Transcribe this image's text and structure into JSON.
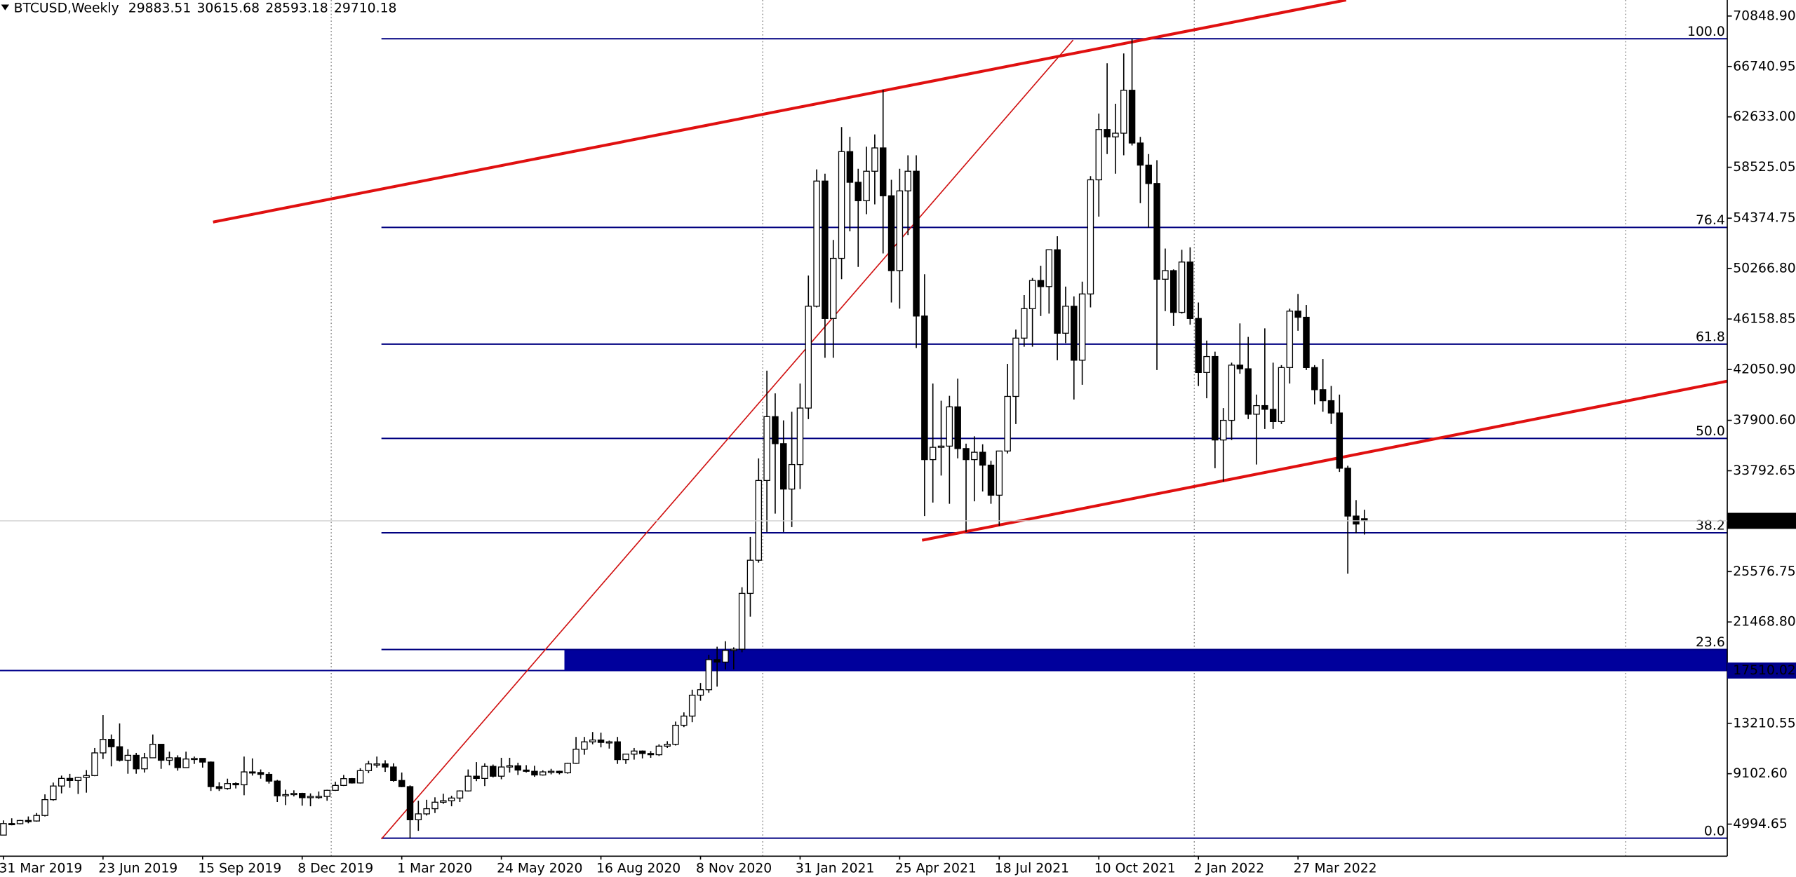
{
  "chart_data": {
    "type": "candlestick",
    "symbol": "BTCUSD,Weekly",
    "ylim": [
      2383,
      72155
    ],
    "yticks": [
      {
        "value": 70848.9,
        "label": "70848.90"
      },
      66740.95,
      {
        "value": 62633,
        "label": "62633.00"
      },
      58525.05,
      54374.75,
      {
        "value": 50266.8,
        "label": "50266.80"
      },
      46158.85,
      {
        "value": 42050.9,
        "label": "42050.90"
      },
      {
        "value": 37900.6,
        "label": "37900.60"
      },
      33792.65,
      25576.75,
      {
        "value": 21468.8,
        "label": "21468.80"
      },
      13210.55,
      {
        "value": 9102.6,
        "label": "9102.60"
      },
      4994.65
    ],
    "categories": [
      "31 Mar 2019",
      null,
      null,
      null,
      null,
      null,
      null,
      null,
      null,
      null,
      null,
      null,
      "23 Jun 2019",
      null,
      null,
      null,
      null,
      null,
      null,
      null,
      null,
      null,
      null,
      null,
      "15 Sep 2019",
      null,
      null,
      null,
      null,
      null,
      null,
      null,
      null,
      null,
      null,
      null,
      "8 Dec 2019",
      null,
      null,
      null,
      null,
      null,
      null,
      null,
      null,
      null,
      null,
      null,
      "1 Mar 2020",
      null,
      null,
      null,
      null,
      null,
      null,
      null,
      null,
      null,
      null,
      null,
      "24 May 2020",
      null,
      null,
      null,
      null,
      null,
      null,
      null,
      null,
      null,
      null,
      null,
      "16 Aug 2020",
      null,
      null,
      null,
      null,
      null,
      null,
      null,
      null,
      null,
      null,
      null,
      "8 Nov 2020",
      null,
      null,
      null,
      null,
      null,
      null,
      null,
      null,
      null,
      null,
      null,
      "31 Jan 2021",
      null,
      null,
      null,
      null,
      null,
      null,
      null,
      null,
      null,
      null,
      null,
      "25 Apr 2021",
      null,
      null,
      null,
      null,
      null,
      null,
      null,
      null,
      null,
      null,
      null,
      "18 Jul 2021",
      null,
      null,
      null,
      null,
      null,
      null,
      null,
      null,
      null,
      null,
      null,
      "10 Oct 2021",
      null,
      null,
      null,
      null,
      null,
      null,
      null,
      null,
      null,
      null,
      null,
      "2 Jan 2022",
      null,
      null,
      null,
      null,
      null,
      null,
      null,
      null,
      null,
      null,
      null,
      "27 Mar 2022",
      null,
      null,
      null,
      null,
      null,
      null,
      null,
      null
    ],
    "ohlc": [
      [
        4100,
        5300,
        4090,
        5040
      ],
      [
        5040,
        5470,
        4900,
        5030
      ],
      [
        5030,
        5340,
        4970,
        5290
      ],
      [
        5290,
        5620,
        5060,
        5250
      ],
      [
        5250,
        5900,
        5200,
        5700
      ],
      [
        5700,
        7420,
        5620,
        6990
      ],
      [
        6990,
        8380,
        6900,
        8100
      ],
      [
        8100,
        8950,
        7500,
        8720
      ],
      [
        8720,
        9090,
        7960,
        8550
      ],
      [
        8550,
        8850,
        7450,
        8800
      ],
      [
        8800,
        9400,
        7560,
        8950
      ],
      [
        8950,
        11200,
        8900,
        10800
      ],
      [
        10800,
        13880,
        10300,
        11900
      ],
      [
        11900,
        12300,
        9700,
        11300
      ],
      [
        11300,
        13200,
        10100,
        10200
      ],
      [
        10200,
        11100,
        9100,
        10600
      ],
      [
        10600,
        10800,
        9100,
        9500
      ],
      [
        9500,
        10800,
        9200,
        10400
      ],
      [
        10400,
        12300,
        10400,
        11500
      ],
      [
        11500,
        11500,
        9500,
        10200
      ],
      [
        10200,
        10900,
        9800,
        10400
      ],
      [
        10400,
        10600,
        9350,
        9600
      ],
      [
        9600,
        10900,
        9600,
        10300
      ],
      [
        10300,
        10500,
        9900,
        10350
      ],
      [
        10350,
        10350,
        9600,
        10050
      ],
      [
        10050,
        10100,
        7700,
        8050
      ],
      [
        8050,
        8400,
        7700,
        7900
      ],
      [
        7900,
        8700,
        7800,
        8300
      ],
      [
        8300,
        8400,
        7900,
        8200
      ],
      [
        8200,
        10500,
        7350,
        9250
      ],
      [
        9250,
        10350,
        8950,
        9200
      ],
      [
        9200,
        9450,
        8700,
        9050
      ],
      [
        9050,
        9250,
        8300,
        8500
      ],
      [
        8500,
        8600,
        6800,
        7300
      ],
      [
        7300,
        7800,
        6550,
        7400
      ],
      [
        7400,
        7750,
        7250,
        7500
      ],
      [
        7500,
        7550,
        6500,
        7150
      ],
      [
        7150,
        7500,
        6450,
        7250
      ],
      [
        7250,
        7650,
        7050,
        7250
      ],
      [
        7250,
        7800,
        6900,
        7750
      ],
      [
        7750,
        8450,
        7700,
        8150
      ],
      [
        8150,
        9000,
        8100,
        8700
      ],
      [
        8700,
        8750,
        8300,
        8350
      ],
      [
        8350,
        9550,
        8300,
        9350
      ],
      [
        9350,
        10150,
        9150,
        9900
      ],
      [
        9900,
        10500,
        9600,
        9900
      ],
      [
        9900,
        10200,
        9250,
        9650
      ],
      [
        9650,
        9950,
        8450,
        8550
      ],
      [
        8550,
        9200,
        8000,
        8050
      ],
      [
        8050,
        8150,
        3850,
        5350
      ],
      [
        5350,
        6900,
        4450,
        5830
      ],
      [
        5830,
        6980,
        5700,
        6250
      ],
      [
        6250,
        7180,
        5900,
        6780
      ],
      [
        6780,
        7470,
        6650,
        6900
      ],
      [
        6900,
        7300,
        6450,
        7120
      ],
      [
        7120,
        7750,
        6800,
        7700
      ],
      [
        7700,
        9450,
        7650,
        8900
      ],
      [
        8900,
        10050,
        8500,
        8720
      ],
      [
        8720,
        9950,
        8100,
        9700
      ],
      [
        9700,
        9850,
        8800,
        8900
      ],
      [
        8900,
        10400,
        8650,
        9650
      ],
      [
        9650,
        10400,
        9200,
        9750
      ],
      [
        9750,
        10000,
        9000,
        9400
      ],
      [
        9400,
        9800,
        9200,
        9300
      ],
      [
        9300,
        9750,
        8850,
        9000
      ],
      [
        9000,
        9380,
        8950,
        9250
      ],
      [
        9250,
        9500,
        9050,
        9300
      ],
      [
        9300,
        9350,
        9050,
        9180
      ],
      [
        9180,
        10000,
        9100,
        9950
      ],
      [
        9950,
        12100,
        9900,
        11100
      ],
      [
        11100,
        12100,
        10650,
        11700
      ],
      [
        11700,
        12500,
        11500,
        11850
      ],
      [
        11850,
        12450,
        11250,
        11650
      ],
      [
        11650,
        11800,
        11150,
        11700
      ],
      [
        11700,
        12100,
        9900,
        10250
      ],
      [
        10250,
        10700,
        9900,
        10700
      ],
      [
        10700,
        11200,
        10250,
        10950
      ],
      [
        10950,
        11000,
        10350,
        10750
      ],
      [
        10750,
        10950,
        10400,
        10650
      ],
      [
        10650,
        11500,
        10550,
        11350
      ],
      [
        11350,
        11750,
        11200,
        11500
      ],
      [
        11500,
        13350,
        11400,
        13050
      ],
      [
        13050,
        14100,
        12900,
        13800
      ],
      [
        13800,
        15950,
        13300,
        15500
      ],
      [
        15500,
        16500,
        15050,
        15950
      ],
      [
        15950,
        18800,
        15700,
        18400
      ],
      [
        18400,
        19450,
        16200,
        18200
      ],
      [
        18200,
        19900,
        17600,
        19150
      ],
      [
        19150,
        19400,
        17600,
        19250
      ],
      [
        19250,
        24300,
        19000,
        23800
      ],
      [
        23800,
        28400,
        21900,
        26500
      ],
      [
        26500,
        34800,
        26300,
        33000
      ],
      [
        33000,
        41950,
        28800,
        38200
      ],
      [
        38200,
        40100,
        30300,
        36000
      ],
      [
        36000,
        37900,
        28800,
        32300
      ],
      [
        32300,
        38600,
        29200,
        34300
      ],
      [
        34300,
        40900,
        32300,
        38900
      ],
      [
        38900,
        49700,
        38000,
        47200
      ],
      [
        47200,
        58350,
        47100,
        57400
      ],
      [
        57400,
        58000,
        43000,
        46200
      ],
      [
        46200,
        52600,
        43000,
        51100
      ],
      [
        51100,
        61800,
        49400,
        59800
      ],
      [
        59800,
        61000,
        53300,
        57300
      ],
      [
        57300,
        58400,
        50400,
        55800
      ],
      [
        55800,
        60200,
        54700,
        58200
      ],
      [
        58200,
        61200,
        55500,
        60100
      ],
      [
        60100,
        64850,
        51500,
        56200
      ],
      [
        56200,
        57500,
        47500,
        50100
      ],
      [
        50100,
        58400,
        47000,
        56600
      ],
      [
        56600,
        59500,
        53000,
        58200
      ],
      [
        58200,
        59500,
        43800,
        46400
      ],
      [
        46400,
        49800,
        30100,
        34700
      ],
      [
        34700,
        40900,
        31200,
        35700
      ],
      [
        35700,
        39500,
        33400,
        35800
      ],
      [
        35800,
        39900,
        31100,
        39000
      ],
      [
        39000,
        41300,
        34800,
        35600
      ],
      [
        35600,
        36000,
        28800,
        34700
      ],
      [
        34700,
        36600,
        31300,
        35300
      ],
      [
        35300,
        35950,
        32100,
        34250
      ],
      [
        34250,
        34600,
        31100,
        31800
      ],
      [
        31800,
        35400,
        29300,
        35400
      ],
      [
        35400,
        42500,
        35200,
        39850
      ],
      [
        39850,
        45300,
        37600,
        44600
      ],
      [
        44600,
        48100,
        43900,
        47000
      ],
      [
        47000,
        49500,
        43900,
        49300
      ],
      [
        49300,
        50500,
        46400,
        48800
      ],
      [
        48800,
        51800,
        46600,
        51800
      ],
      [
        51800,
        52900,
        42800,
        45000
      ],
      [
        45000,
        48800,
        44200,
        47200
      ],
      [
        47200,
        48000,
        39600,
        42800
      ],
      [
        42800,
        49200,
        40800,
        48200
      ],
      [
        48200,
        57800,
        47100,
        57500
      ],
      [
        57500,
        62900,
        54500,
        61600
      ],
      [
        61600,
        67000,
        59600,
        61000
      ],
      [
        61000,
        63700,
        58000,
        61300
      ],
      [
        61300,
        67800,
        59500,
        64800
      ],
      [
        64800,
        69000,
        60300,
        60500
      ],
      [
        60500,
        61000,
        55600,
        58700
      ],
      [
        58700,
        59600,
        53600,
        57200
      ],
      [
        57200,
        59100,
        42000,
        49400
      ],
      [
        49400,
        51900,
        46800,
        50100
      ],
      [
        50100,
        50200,
        45600,
        46700
      ],
      [
        46700,
        51800,
        46600,
        50800
      ],
      [
        50800,
        52000,
        45700,
        46200
      ],
      [
        46200,
        47500,
        40700,
        41800
      ],
      [
        41800,
        44400,
        39700,
        43100
      ],
      [
        43100,
        43500,
        34000,
        36300
      ],
      [
        36300,
        38900,
        32900,
        37900
      ],
      [
        37900,
        42600,
        36300,
        42400
      ],
      [
        42400,
        45800,
        41700,
        42100
      ],
      [
        42100,
        44700,
        38000,
        38400
      ],
      [
        38400,
        40000,
        34300,
        39100
      ],
      [
        39100,
        45400,
        37200,
        38800
      ],
      [
        38800,
        42600,
        37200,
        37800
      ],
      [
        37800,
        42400,
        37600,
        42200
      ],
      [
        42200,
        47000,
        40900,
        46800
      ],
      [
        46800,
        48200,
        45200,
        46300
      ],
      [
        46300,
        47300,
        42000,
        42200
      ],
      [
        42200,
        42400,
        39200,
        40400
      ],
      [
        40400,
        42900,
        38600,
        39500
      ],
      [
        39500,
        40700,
        37600,
        38500
      ],
      [
        38500,
        40000,
        33700,
        34000
      ],
      [
        34000,
        34200,
        25400,
        30100
      ],
      [
        30100,
        31400,
        28700,
        29450
      ],
      [
        29883.51,
        30615.68,
        28593.18,
        29710.18
      ]
    ],
    "bull_color": "#ffffff",
    "bear_color": "#000000",
    "period_separators": [
      39.5,
      91.5,
      143.5,
      195.5
    ],
    "hline": {
      "price": 17510.02,
      "color": "#00008b"
    },
    "zone": {
      "start": 67.6,
      "low": 17510.02,
      "high": 19225,
      "color": "#00009c"
    },
    "fib": {
      "from": 45.55,
      "color": "#000080",
      "levels": [
        {
          "label": "0.0",
          "price": 3850
        },
        {
          "label": "23.6",
          "price": 19225
        },
        {
          "label": "38.2",
          "price": 28737
        },
        {
          "label": "50.0",
          "price": 36425
        },
        {
          "label": "61.8",
          "price": 44113
        },
        {
          "label": "76.4",
          "price": 53625
        },
        {
          "label": "100.0",
          "price": 69000
        }
      ]
    },
    "trendlines": [
      {
        "color": "#e01010",
        "width": 2.5,
        "points": [
          [
            25.26,
            54058
          ],
          [
            161.8,
            72155
          ]
        ]
      },
      {
        "color": "#d01010",
        "width": 1,
        "points": [
          [
            45.55,
            3783
          ],
          [
            128.9,
            68890
          ]
        ]
      },
      {
        "color": "#e01010",
        "width": 2.5,
        "points": [
          [
            110.7,
            28128
          ],
          [
            207.7,
            41093
          ]
        ]
      }
    ]
  }
}
